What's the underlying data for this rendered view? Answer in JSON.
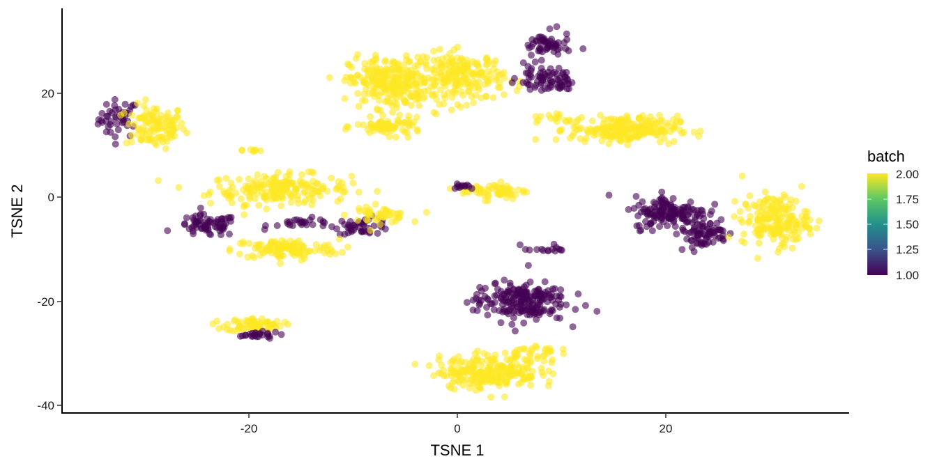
{
  "chart_data": {
    "type": "scatter",
    "title": "",
    "xlabel": "TSNE 1",
    "ylabel": "TSNE 2",
    "xlim": [
      -37.7,
      37.6
    ],
    "ylim": [
      -41.0,
      36.5
    ],
    "x_ticks": [
      -20,
      0,
      20
    ],
    "y_ticks": [
      -40,
      -20,
      0,
      20
    ],
    "grid": false,
    "color_variable": "batch",
    "legend": {
      "title": "batch",
      "type": "colorbar",
      "position": "right",
      "range": [
        1.0,
        2.0
      ],
      "ticks": [
        "2.00",
        "1.75",
        "1.50",
        "1.25",
        "1.00"
      ],
      "colormap": "viridis",
      "colors": [
        "#440154",
        "#3B528B",
        "#21908C",
        "#5DC863",
        "#FDE725"
      ]
    },
    "point_alpha": 0.6,
    "series": [
      {
        "name": "batch 1",
        "color": "#440154"
      },
      {
        "name": "batch 2",
        "color": "#FDE725"
      }
    ],
    "clusters": [
      {
        "batch": 1,
        "cx": -32.5,
        "cy": 15.0,
        "sx": 1.2,
        "sy": 2.3,
        "n": 45
      },
      {
        "batch": 2,
        "cx": -29.0,
        "cy": 13.5,
        "sx": 1.8,
        "sy": 2.6,
        "n": 110
      },
      {
        "batch": 2,
        "cx": -17.0,
        "cy": 1.5,
        "sx": 4.2,
        "sy": 1.8,
        "n": 200
      },
      {
        "batch": 2,
        "cx": -19.5,
        "cy": 9.0,
        "sx": 0.7,
        "sy": 0.3,
        "n": 8
      },
      {
        "batch": 1,
        "cx": -24.0,
        "cy": -5.5,
        "sx": 1.8,
        "sy": 1.3,
        "n": 70
      },
      {
        "batch": 1,
        "cx": -14.5,
        "cy": -5.0,
        "sx": 2.2,
        "sy": 0.6,
        "n": 25
      },
      {
        "batch": 1,
        "cx": -9.0,
        "cy": -5.5,
        "sx": 1.7,
        "sy": 1.0,
        "n": 45
      },
      {
        "batch": 2,
        "cx": -7.5,
        "cy": -3.5,
        "sx": 1.8,
        "sy": 0.9,
        "n": 45
      },
      {
        "batch": 2,
        "cx": -16.5,
        "cy": -10.0,
        "sx": 3.2,
        "sy": 1.2,
        "n": 120
      },
      {
        "batch": 2,
        "cx": -19.5,
        "cy": -24.5,
        "sx": 1.7,
        "sy": 0.8,
        "n": 70
      },
      {
        "batch": 1,
        "cx": -19.5,
        "cy": -26.5,
        "sx": 1.6,
        "sy": 0.4,
        "n": 25
      },
      {
        "batch": 2,
        "cx": -6.5,
        "cy": 22.0,
        "sx": 2.4,
        "sy": 3.0,
        "n": 260
      },
      {
        "batch": 2,
        "cx": 0.5,
        "cy": 23.0,
        "sx": 2.5,
        "sy": 3.0,
        "n": 200
      },
      {
        "batch": 2,
        "cx": -6.5,
        "cy": 13.5,
        "sx": 2.0,
        "sy": 1.0,
        "n": 70
      },
      {
        "batch": 1,
        "cx": 8.5,
        "cy": 29.0,
        "sx": 1.5,
        "sy": 1.6,
        "n": 55
      },
      {
        "batch": 1,
        "cx": 8.0,
        "cy": 23.0,
        "sx": 1.4,
        "sy": 1.4,
        "n": 50
      },
      {
        "batch": 1,
        "cx": 10.0,
        "cy": 22.0,
        "sx": 1.2,
        "sy": 1.0,
        "n": 25
      },
      {
        "batch": 2,
        "cx": 16.0,
        "cy": 13.0,
        "sx": 3.2,
        "sy": 1.6,
        "n": 220
      },
      {
        "batch": 2,
        "cx": 9.5,
        "cy": 15.0,
        "sx": 1.5,
        "sy": 0.8,
        "n": 15
      },
      {
        "batch": 2,
        "cx": 3.5,
        "cy": 1.2,
        "sx": 2.0,
        "sy": 1.0,
        "n": 60
      },
      {
        "batch": 1,
        "cx": 0.5,
        "cy": 2.2,
        "sx": 0.8,
        "sy": 0.4,
        "n": 12
      },
      {
        "batch": 1,
        "cx": 20.5,
        "cy": -3.0,
        "sx": 2.2,
        "sy": 2.0,
        "n": 150
      },
      {
        "batch": 1,
        "cx": 23.5,
        "cy": -7.0,
        "sx": 1.6,
        "sy": 1.6,
        "n": 70
      },
      {
        "batch": 2,
        "cx": 30.5,
        "cy": -4.5,
        "sx": 2.0,
        "sy": 3.0,
        "n": 180
      },
      {
        "batch": 1,
        "cx": 6.0,
        "cy": -20.0,
        "sx": 2.8,
        "sy": 2.4,
        "n": 200
      },
      {
        "batch": 1,
        "cx": 8.5,
        "cy": -10.0,
        "sx": 1.5,
        "sy": 0.5,
        "n": 15
      },
      {
        "batch": 2,
        "cx": 3.0,
        "cy": -33.5,
        "sx": 3.0,
        "sy": 2.0,
        "n": 230
      },
      {
        "batch": 2,
        "cx": 7.0,
        "cy": -30.0,
        "sx": 1.6,
        "sy": 1.2,
        "n": 35
      }
    ]
  },
  "axes": {
    "x_title": "TSNE 1",
    "y_title": "TSNE 2",
    "x_tick_labels": [
      "-20",
      "0",
      "20"
    ],
    "y_tick_labels": [
      "20",
      "0",
      "-20",
      "-40"
    ]
  },
  "legend": {
    "title": "batch",
    "labels": [
      "2.00",
      "1.75",
      "1.50",
      "1.25",
      "1.00"
    ]
  }
}
